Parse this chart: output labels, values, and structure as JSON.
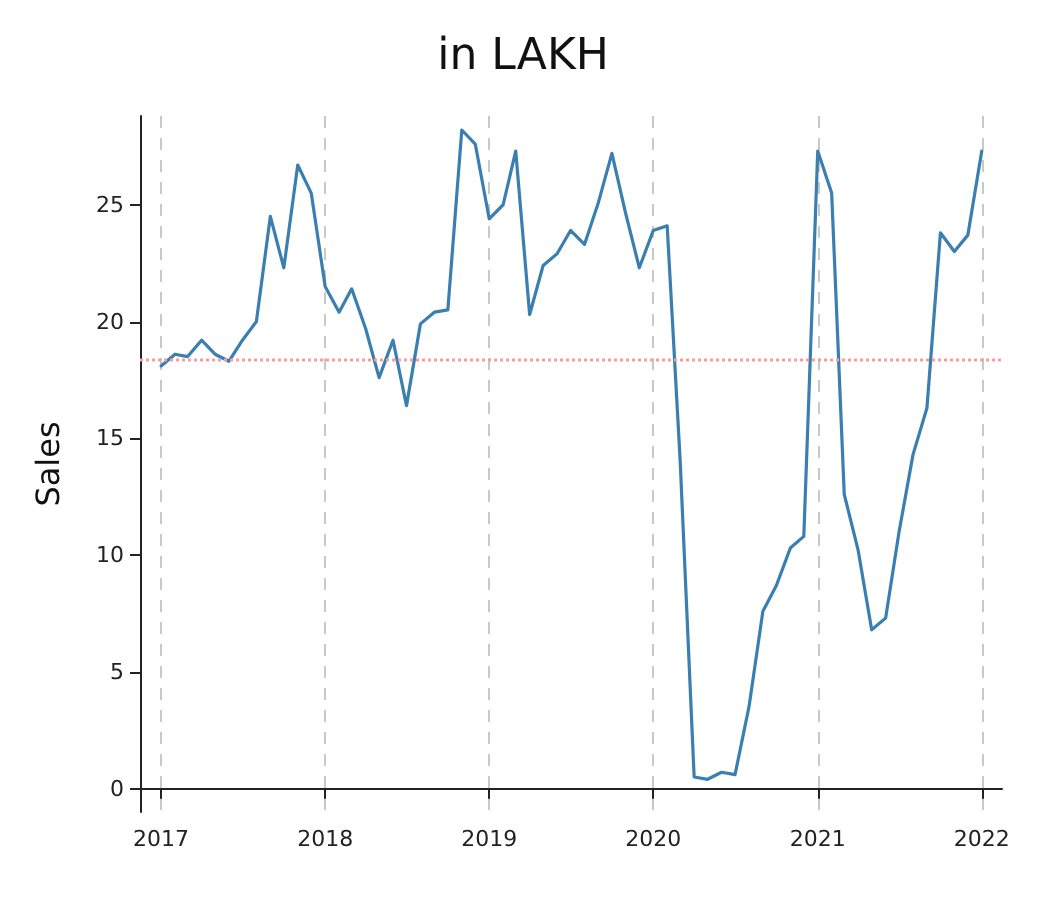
{
  "chart_data": {
    "type": "line",
    "title": "in LAKH",
    "ylabel": "Sales",
    "x": [
      "2017-01",
      "2017-02",
      "2017-03",
      "2017-04",
      "2017-05",
      "2017-06",
      "2017-07",
      "2017-08",
      "2017-09",
      "2017-10",
      "2017-11",
      "2017-12",
      "2018-01",
      "2018-02",
      "2018-03",
      "2018-04",
      "2018-05",
      "2018-06",
      "2018-07",
      "2018-08",
      "2018-09",
      "2018-10",
      "2018-11",
      "2018-12",
      "2019-01",
      "2019-02",
      "2019-03",
      "2019-04",
      "2019-05",
      "2019-06",
      "2019-07",
      "2019-08",
      "2019-09",
      "2019-10",
      "2019-11",
      "2019-12",
      "2020-01",
      "2020-02",
      "2020-03",
      "2020-04",
      "2020-05",
      "2020-06",
      "2020-07",
      "2020-08",
      "2020-09",
      "2020-10",
      "2020-11",
      "2020-12",
      "2021-01",
      "2021-02",
      "2021-03",
      "2021-04",
      "2021-05",
      "2021-06",
      "2021-07",
      "2021-08",
      "2021-09",
      "2021-10",
      "2021-11",
      "2021-12",
      "2022-01"
    ],
    "series": [
      {
        "color": "#3a7fb0",
        "values": [
          18.1,
          18.6,
          18.5,
          19.2,
          18.6,
          18.3,
          19.2,
          20.0,
          24.5,
          22.3,
          26.7,
          25.5,
          21.5,
          20.4,
          21.4,
          19.7,
          17.6,
          19.2,
          16.4,
          19.9,
          20.4,
          20.5,
          28.2,
          27.6,
          24.4,
          25.0,
          27.3,
          20.3,
          22.4,
          22.9,
          23.9,
          23.3,
          25.1,
          27.2,
          24.6,
          22.3,
          23.9,
          24.1,
          14.0,
          0.5,
          0.4,
          0.7,
          0.6,
          3.5,
          7.6,
          8.7,
          10.3,
          10.8,
          27.3,
          25.5,
          12.6,
          10.2,
          6.8,
          7.3,
          11.0,
          14.3,
          16.3,
          23.8,
          23.0,
          23.7,
          27.3
        ]
      }
    ],
    "xlim": [
      "2016-11-15",
      "2022-02-15"
    ],
    "ylim": [
      -1,
      28.8
    ],
    "xticks": [
      {
        "value": "2017",
        "label": "2017"
      },
      {
        "value": "2018",
        "label": "2018"
      },
      {
        "value": "2019",
        "label": "2019"
      },
      {
        "value": "2020",
        "label": "2020"
      },
      {
        "value": "2021",
        "label": "2021"
      },
      {
        "value": "2022",
        "label": "2022"
      }
    ],
    "yticks": [
      0,
      5,
      10,
      15,
      20,
      25
    ],
    "grid": "x",
    "marker": "none",
    "line_style": "solid",
    "ref_lines": [
      {
        "axis": "y",
        "value": 18.4,
        "label": null,
        "color": "#f4a0a0",
        "line_style": "dotted"
      }
    ]
  }
}
